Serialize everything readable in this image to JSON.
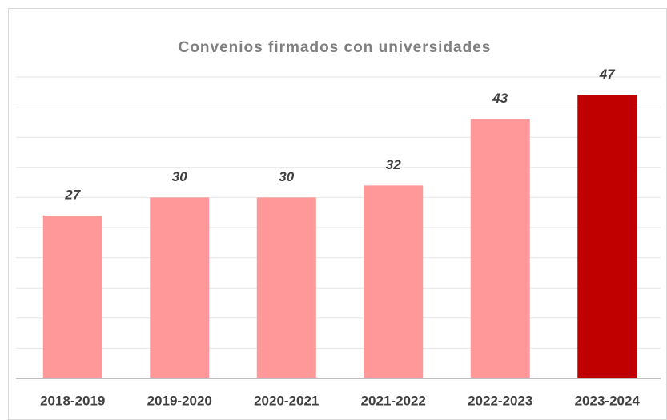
{
  "chart_data": {
    "type": "bar",
    "title": "Convenios firmados con universidades",
    "categories": [
      "2018-2019",
      "2019-2020",
      "2020-2021",
      "2021-2022",
      "2022-2023",
      "2023-2024"
    ],
    "values": [
      27,
      30,
      30,
      32,
      43,
      47
    ],
    "colors": [
      "#ff9999",
      "#ff9999",
      "#ff9999",
      "#ff9999",
      "#ff9999",
      "#c00000"
    ],
    "ylim": [
      0,
      50
    ],
    "yticks": [
      0,
      5,
      10,
      15,
      20,
      25,
      30,
      35,
      40,
      45,
      50
    ],
    "grid": true
  }
}
